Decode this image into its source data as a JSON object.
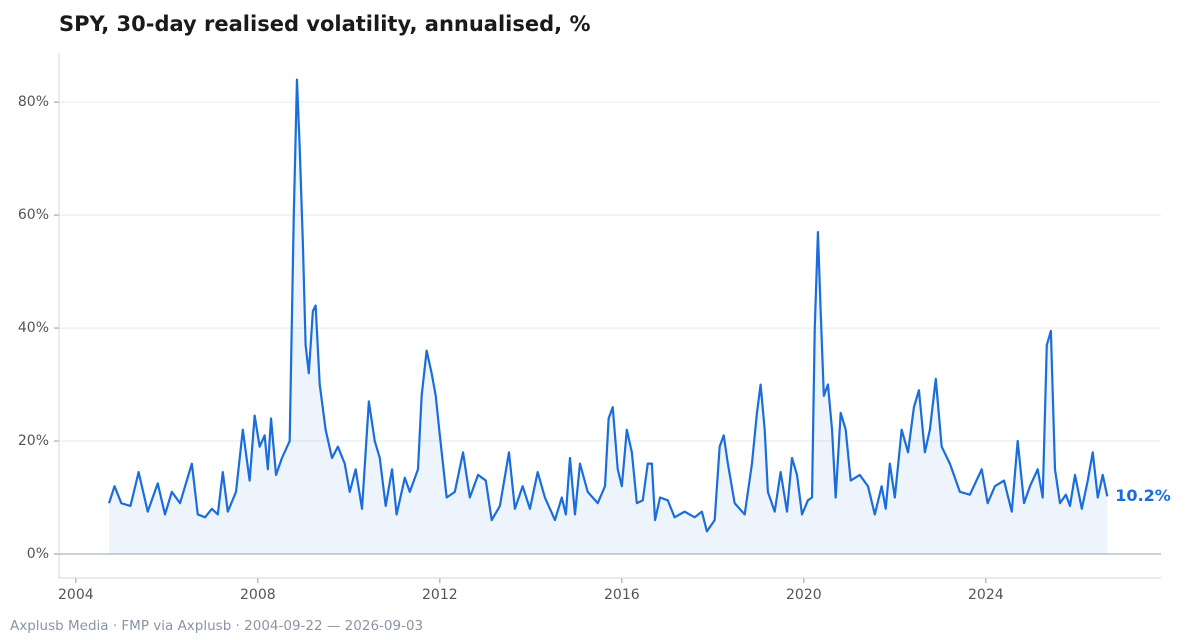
{
  "chart_data": {
    "type": "line",
    "title": "SPY, 30-day realised volatility, annualised, %",
    "source": "Axplusb Media · FMP via Axplusb · 2004-09-22 — 2026-09-03",
    "color": "#1a6ddb",
    "grid": true,
    "xlim": [
      2003.63,
      2027.85
    ],
    "xticks": [
      2004,
      2008,
      2012,
      2016,
      2020,
      2024
    ],
    "ylim": [
      -4.25,
      88.7
    ],
    "yticks": [
      {
        "value": 0,
        "label": "0%"
      },
      {
        "value": 20,
        "label": "20%"
      },
      {
        "value": 40,
        "label": "40%"
      },
      {
        "value": 60,
        "label": "60%"
      },
      {
        "value": 80,
        "label": "80%"
      }
    ],
    "annotations": [
      {
        "x": 2026.67,
        "y": 10.2,
        "label": "10.2%"
      }
    ],
    "series": [
      {
        "name": "SPY",
        "x": [
          2004.73,
          2004.85,
          2005.0,
          2005.2,
          2005.38,
          2005.58,
          2005.8,
          2005.96,
          2006.11,
          2006.29,
          2006.55,
          2006.68,
          2006.84,
          2006.99,
          2007.12,
          2007.23,
          2007.34,
          2007.52,
          2007.67,
          2007.82,
          2007.93,
          2008.04,
          2008.15,
          2008.22,
          2008.29,
          2008.4,
          2008.53,
          2008.7,
          2008.79,
          2008.86,
          2008.92,
          2008.99,
          2009.05,
          2009.12,
          2009.21,
          2009.27,
          2009.36,
          2009.49,
          2009.63,
          2009.76,
          2009.91,
          2010.02,
          2010.15,
          2010.29,
          2010.44,
          2010.57,
          2010.68,
          2010.81,
          2010.95,
          2011.05,
          2011.23,
          2011.34,
          2011.52,
          2011.6,
          2011.71,
          2011.82,
          2011.91,
          2012.0,
          2012.15,
          2012.33,
          2012.51,
          2012.66,
          2012.84,
          2013.01,
          2013.14,
          2013.32,
          2013.52,
          2013.65,
          2013.82,
          2013.98,
          2014.15,
          2014.31,
          2014.53,
          2014.68,
          2014.77,
          2014.86,
          2014.97,
          2015.08,
          2015.25,
          2015.47,
          2015.63,
          2015.71,
          2015.8,
          2015.91,
          2016.0,
          2016.11,
          2016.22,
          2016.33,
          2016.46,
          2016.57,
          2016.66,
          2016.73,
          2016.84,
          2017.01,
          2017.16,
          2017.38,
          2017.6,
          2017.76,
          2017.87,
          2018.04,
          2018.15,
          2018.24,
          2018.33,
          2018.48,
          2018.7,
          2018.86,
          2018.97,
          2019.05,
          2019.14,
          2019.21,
          2019.36,
          2019.49,
          2019.63,
          2019.74,
          2019.85,
          2019.96,
          2020.09,
          2020.18,
          2020.24,
          2020.31,
          2020.37,
          2020.44,
          2020.53,
          2020.62,
          2020.7,
          2020.81,
          2020.92,
          2021.03,
          2021.23,
          2021.41,
          2021.56,
          2021.71,
          2021.8,
          2021.89,
          2022.0,
          2022.15,
          2022.29,
          2022.42,
          2022.53,
          2022.66,
          2022.77,
          2022.9,
          2023.03,
          2023.21,
          2023.43,
          2023.65,
          2023.91,
          2024.04,
          2024.2,
          2024.4,
          2024.57,
          2024.7,
          2024.84,
          2024.97,
          2025.14,
          2025.25,
          2025.34,
          2025.43,
          2025.52,
          2025.63,
          2025.76,
          2025.85,
          2025.96,
          2026.11,
          2026.24,
          2026.35,
          2026.46,
          2026.57,
          2026.67
        ],
        "values": [
          9,
          12,
          9,
          8.5,
          14.5,
          7.5,
          12.5,
          7,
          11,
          9,
          16,
          7,
          6.5,
          8,
          7,
          14.5,
          7.5,
          11,
          22,
          13,
          24.5,
          19,
          21,
          15,
          24,
          14,
          17,
          20,
          60,
          84,
          72,
          55,
          37,
          32,
          43,
          44,
          30,
          22,
          17,
          19,
          16,
          11,
          15,
          8,
          27,
          20,
          17,
          8.5,
          15,
          7,
          13.5,
          11,
          15,
          28,
          36,
          32,
          28,
          21,
          10,
          11,
          18,
          10,
          14,
          13,
          6,
          8.5,
          18,
          8,
          12,
          8,
          14.5,
          10,
          6,
          10,
          7,
          17,
          7,
          16,
          11,
          9,
          12,
          24,
          26,
          15,
          12,
          22,
          18,
          9,
          9.5,
          16,
          16,
          6,
          10,
          9.5,
          6.5,
          7.5,
          6.5,
          7.5,
          4,
          6,
          19,
          21,
          16,
          9,
          7,
          16,
          25,
          30,
          22,
          11,
          7.5,
          14.5,
          7.5,
          17,
          14,
          7,
          9.5,
          10,
          40,
          57,
          43,
          28,
          30,
          22,
          10,
          25,
          22,
          13,
          14,
          12,
          7,
          12,
          8,
          16,
          10,
          22,
          18,
          26,
          29,
          18,
          22,
          31,
          19,
          16,
          11,
          10.5,
          15,
          9,
          12,
          13,
          7.5,
          20,
          9,
          12,
          15,
          10,
          37,
          39.5,
          15,
          9,
          10.5,
          8.5,
          14,
          8,
          13,
          18,
          10,
          14,
          10.2
        ]
      }
    ]
  }
}
